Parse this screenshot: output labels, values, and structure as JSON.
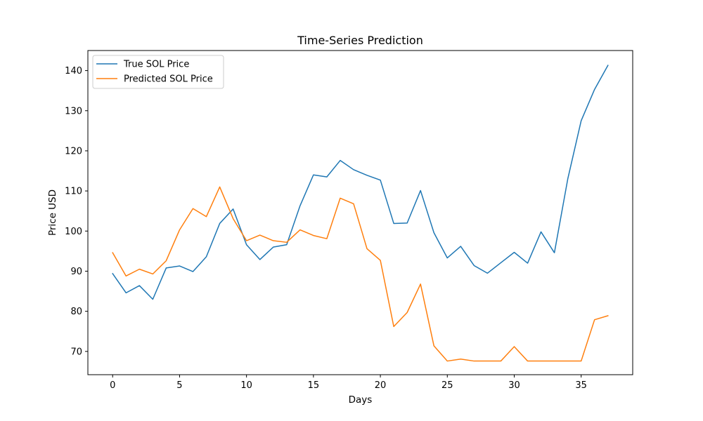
{
  "chart_data": {
    "type": "line",
    "title": "Time-Series Prediction",
    "xlabel": "Days",
    "ylabel": "Price USD",
    "xlim": [
      -1.85,
      38.85
    ],
    "ylim": [
      64.2,
      145.0
    ],
    "xticks": [
      0,
      5,
      10,
      15,
      20,
      25,
      30,
      35
    ],
    "yticks": [
      70,
      80,
      90,
      100,
      110,
      120,
      130,
      140
    ],
    "grid": false,
    "legend_position": "top-left",
    "x": [
      0,
      1,
      2,
      3,
      4,
      5,
      6,
      7,
      8,
      9,
      10,
      11,
      12,
      13,
      14,
      15,
      16,
      17,
      18,
      19,
      20,
      21,
      22,
      23,
      24,
      25,
      26,
      27,
      28,
      29,
      30,
      31,
      32,
      33,
      34,
      35,
      36,
      37
    ],
    "series": [
      {
        "name": "True SOL Price",
        "color": "#1f77b4",
        "values": [
          89.4,
          84.6,
          86.4,
          83.0,
          90.8,
          91.3,
          89.9,
          93.6,
          101.9,
          105.5,
          96.6,
          92.9,
          96.0,
          96.6,
          106.3,
          114.0,
          113.5,
          117.6,
          115.3,
          113.9,
          112.7,
          101.9,
          102.0,
          110.1,
          99.6,
          93.3,
          96.2,
          91.4,
          89.5,
          92.1,
          94.7,
          92.0,
          99.8,
          94.6,
          113.0,
          127.5,
          135.3,
          141.3
        ]
      },
      {
        "name": "Predicted SOL Price",
        "color": "#ff7f0e",
        "values": [
          94.6,
          88.8,
          90.5,
          89.3,
          92.6,
          100.3,
          105.6,
          103.6,
          111.0,
          103.1,
          97.6,
          99.0,
          97.6,
          97.2,
          100.3,
          98.9,
          98.1,
          108.2,
          106.8,
          95.6,
          92.7,
          76.2,
          79.7,
          86.8,
          71.4,
          67.6,
          68.1,
          67.6,
          67.6,
          67.6,
          71.2,
          67.6,
          67.6,
          67.6,
          67.6,
          67.6,
          77.9,
          78.9
        ]
      }
    ]
  }
}
